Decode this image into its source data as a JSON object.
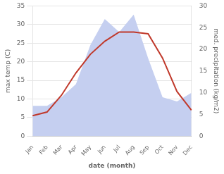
{
  "chart_data": {
    "type": "line",
    "xlabel": "date (month)",
    "ylabel": "max temp (C)",
    "y2label": "med. precipitation (kg/m2)",
    "categories": [
      "Jan",
      "Feb",
      "Mar",
      "Apr",
      "May",
      "Jun",
      "Jul",
      "Aug",
      "Sep",
      "Oct",
      "Nov",
      "Dec"
    ],
    "series": [
      {
        "type": "line",
        "color": "#c0392b",
        "values": [
          5.5,
          6.5,
          11.0,
          17.0,
          22.0,
          25.5,
          28.0,
          28.0,
          27.5,
          21.0,
          12.0,
          7.0
        ]
      },
      {
        "type": "area",
        "axis": "y2",
        "color": "#c5cff0",
        "values": [
          7.0,
          7.0,
          9.0,
          12.0,
          21.0,
          27.0,
          24.0,
          28.0,
          18.0,
          9.0,
          8.0,
          10.0
        ]
      }
    ],
    "ylim": [
      0,
      35
    ],
    "yticks": [
      0,
      5,
      10,
      15,
      20,
      25,
      30,
      35
    ],
    "y2lim": [
      0,
      30
    ],
    "y2ticks": [
      0,
      5,
      10,
      15,
      20,
      25,
      30
    ],
    "grid": true
  }
}
